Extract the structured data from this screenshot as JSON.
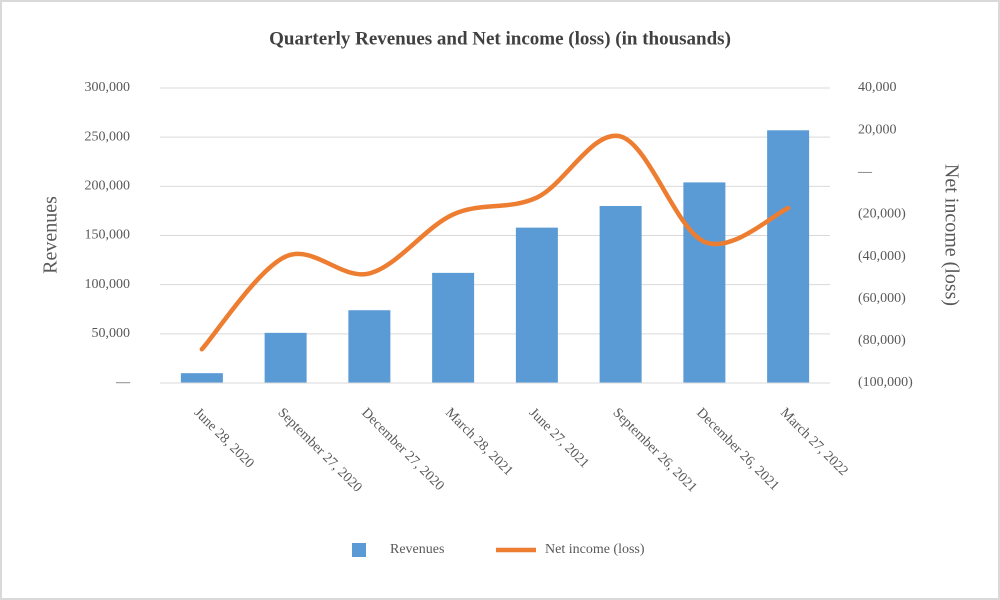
{
  "chart_data": {
    "type": "bar-line",
    "title": "Quarterly Revenues and Net income (loss) (in thousands)",
    "categories": [
      "June 28, 2020",
      "September 27, 2020",
      "December 27, 2020",
      "March 28, 2021",
      "June 27, 2021",
      "September 26, 2021",
      "December 26, 2021",
      "March 27, 2022"
    ],
    "y_label": "Revenues",
    "y2_label": "Net income (loss)",
    "series": [
      {
        "name": "Revenues",
        "type": "bar",
        "color": "#5b9bd5",
        "values": [
          10000,
          51000,
          74000,
          112000,
          158000,
          180000,
          204000,
          257000
        ]
      },
      {
        "name": "Net income (loss)",
        "type": "line",
        "axis": "y2",
        "color": "#ed7d31",
        "values": [
          -84000,
          -40000,
          -48000,
          -20000,
          -12000,
          17000,
          -33000,
          -17000
        ]
      }
    ],
    "ylim": [
      0,
      300000
    ],
    "yticks": [
      {
        "value": 0,
        "label": "—"
      },
      {
        "value": 50000,
        "label": "50,000"
      },
      {
        "value": 100000,
        "label": "100,000"
      },
      {
        "value": 150000,
        "label": "150,000"
      },
      {
        "value": 200000,
        "label": "200,000"
      },
      {
        "value": 250000,
        "label": "250,000"
      },
      {
        "value": 300000,
        "label": "300,000"
      }
    ],
    "y2lim": [
      -100000,
      40000
    ],
    "y2ticks": [
      {
        "value": -100000,
        "label": "(100,000)"
      },
      {
        "value": -80000,
        "label": "(80,000)"
      },
      {
        "value": -60000,
        "label": "(60,000)"
      },
      {
        "value": -40000,
        "label": "(40,000)"
      },
      {
        "value": -20000,
        "label": "(20,000)"
      },
      {
        "value": 0,
        "label": "—"
      },
      {
        "value": 20000,
        "label": "20,000"
      },
      {
        "value": 40000,
        "label": "40,000"
      }
    ],
    "grid": true,
    "legend": "bottom"
  }
}
